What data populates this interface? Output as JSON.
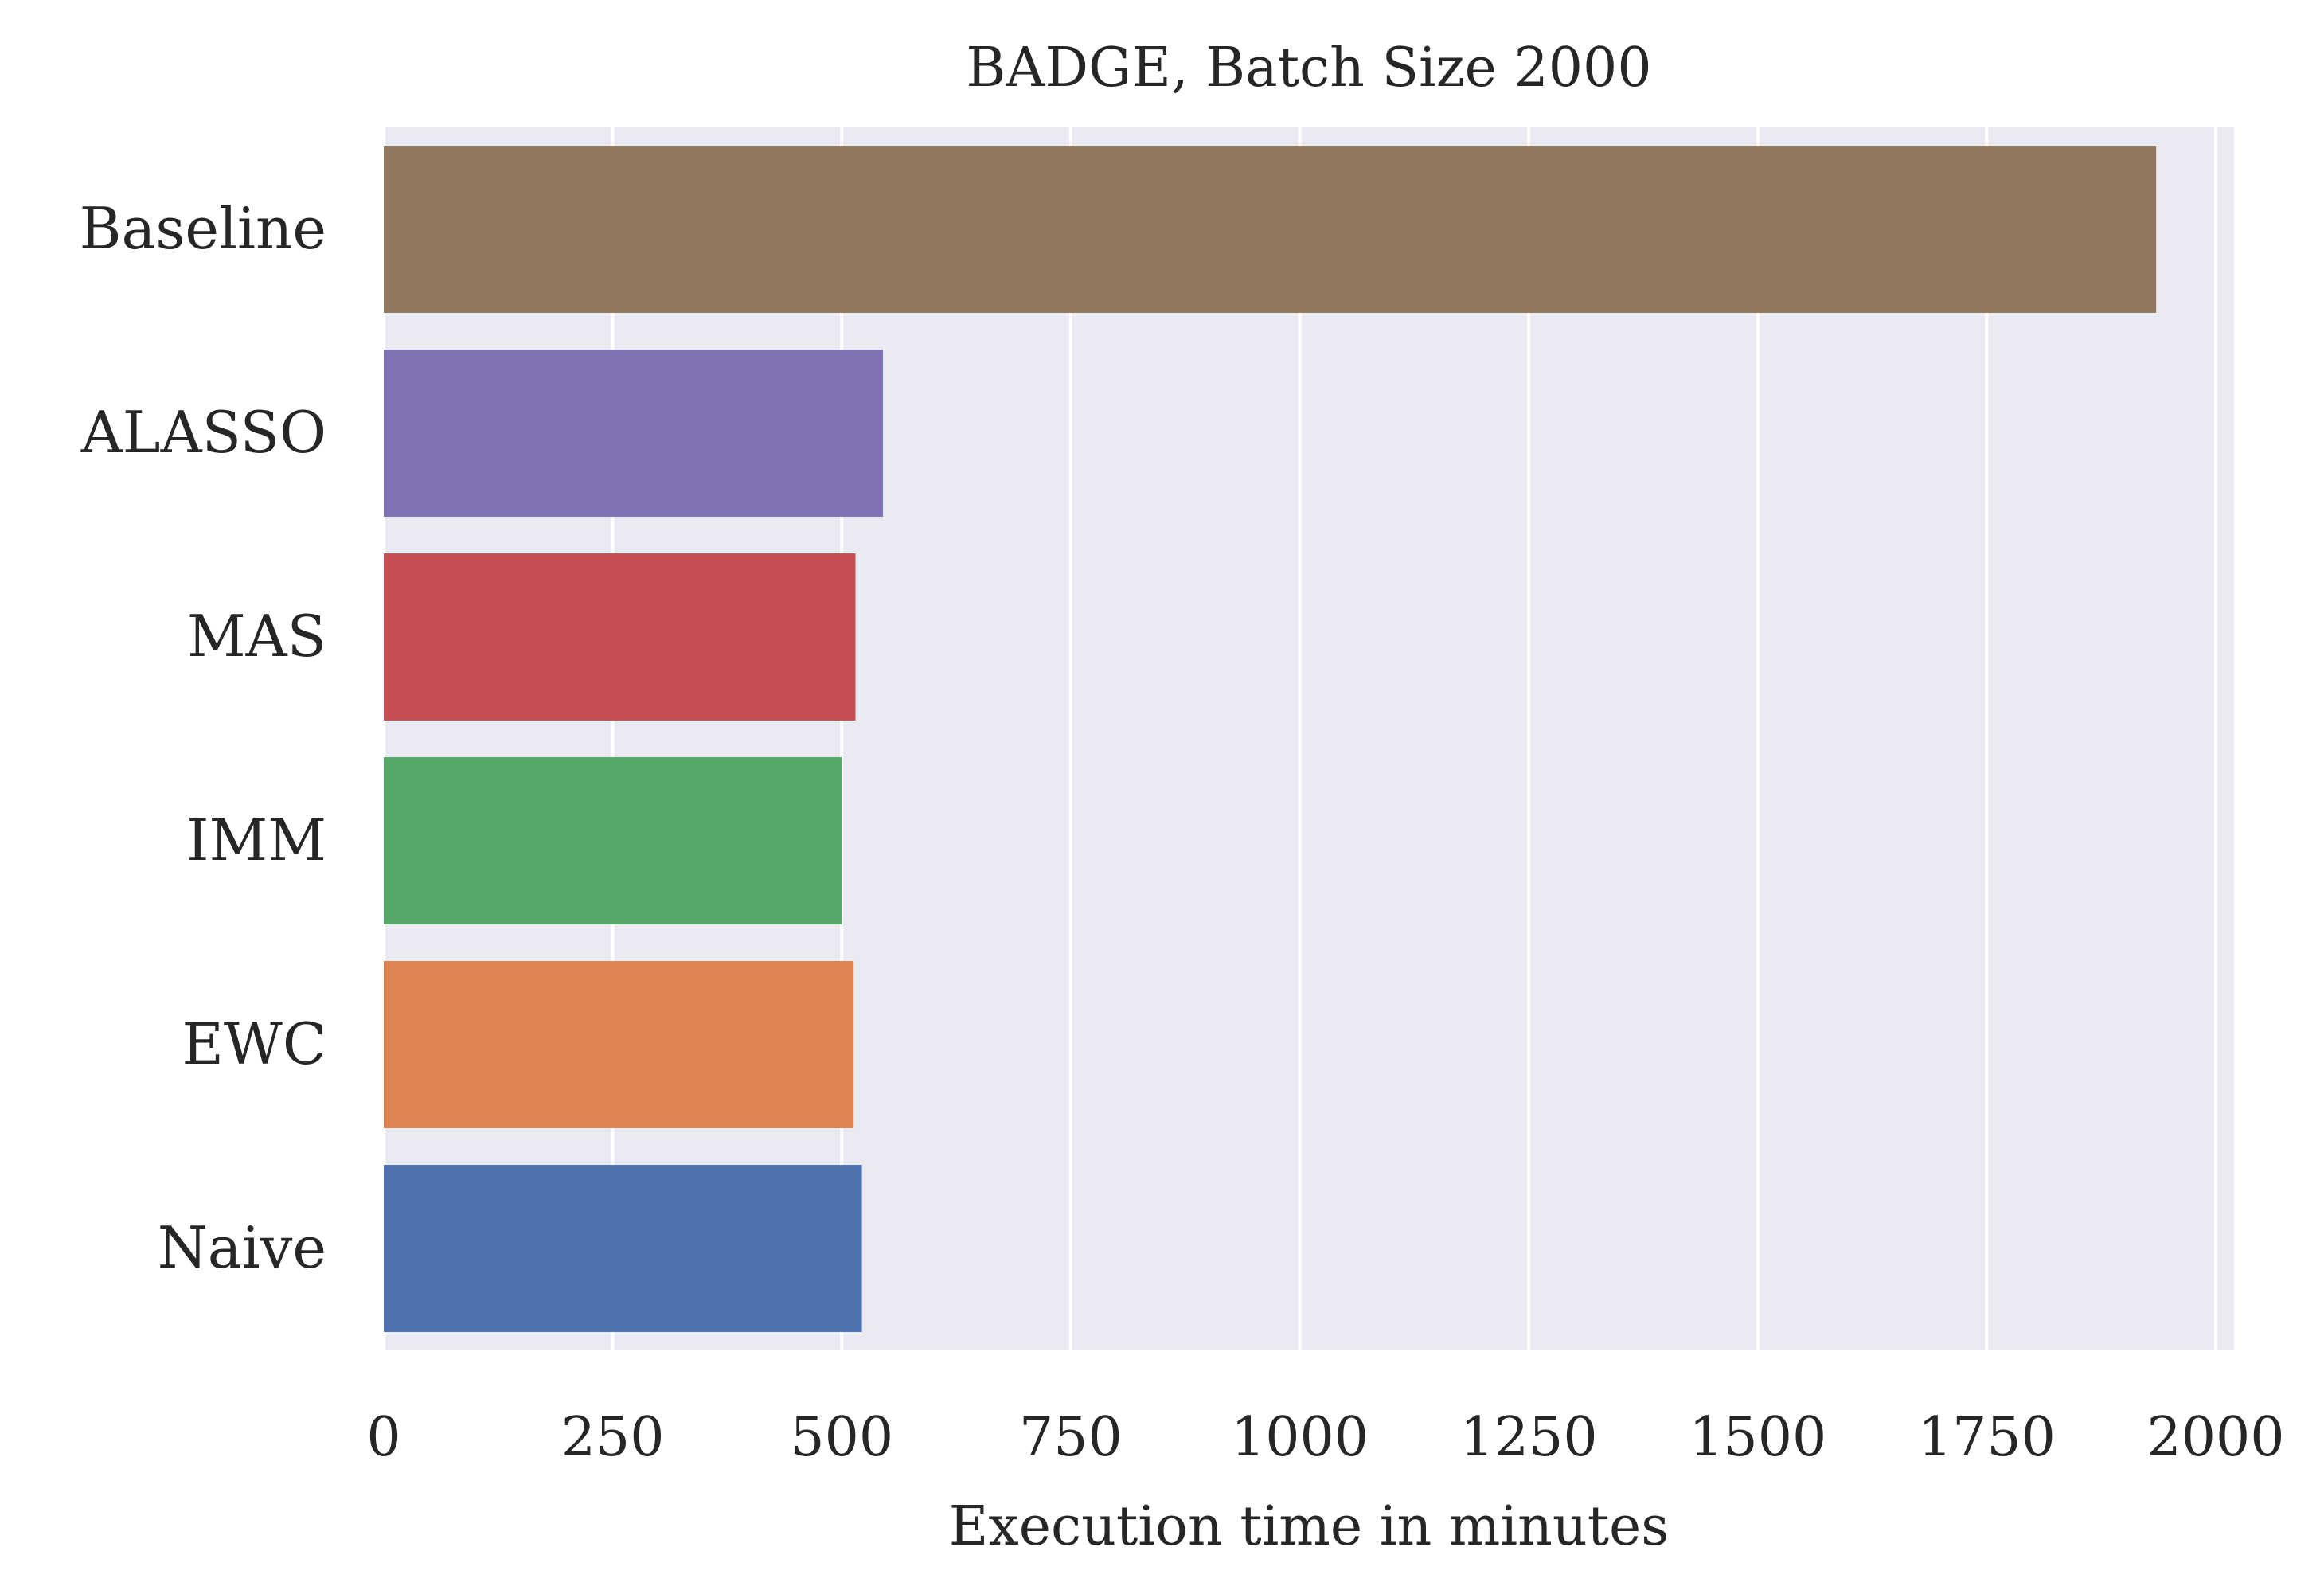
{
  "chart_data": {
    "type": "bar",
    "orientation": "horizontal",
    "title": "BADGE, Batch Size 2000",
    "xlabel": "Execution time in minutes",
    "ylabel": "",
    "categories": [
      "Baseline",
      "ALASSO",
      "MAS",
      "IMM",
      "EWC",
      "Naive"
    ],
    "values": [
      1935,
      545,
      515,
      500,
      513,
      522
    ],
    "colors": [
      "#937860",
      "#8172b3",
      "#c44e52",
      "#55a868",
      "#dd8452",
      "#4c72b0"
    ],
    "xlim": [
      0,
      2020
    ],
    "xticks": [
      0,
      250,
      500,
      750,
      1000,
      1250,
      1500,
      1750,
      2000
    ],
    "xtick_labels": [
      "0",
      "250",
      "500",
      "750",
      "1000",
      "1250",
      "1500",
      "1750",
      "2000"
    ],
    "grid": true,
    "style": {
      "plot_background": "#eaeaf2",
      "grid_color": "#ffffff"
    }
  }
}
